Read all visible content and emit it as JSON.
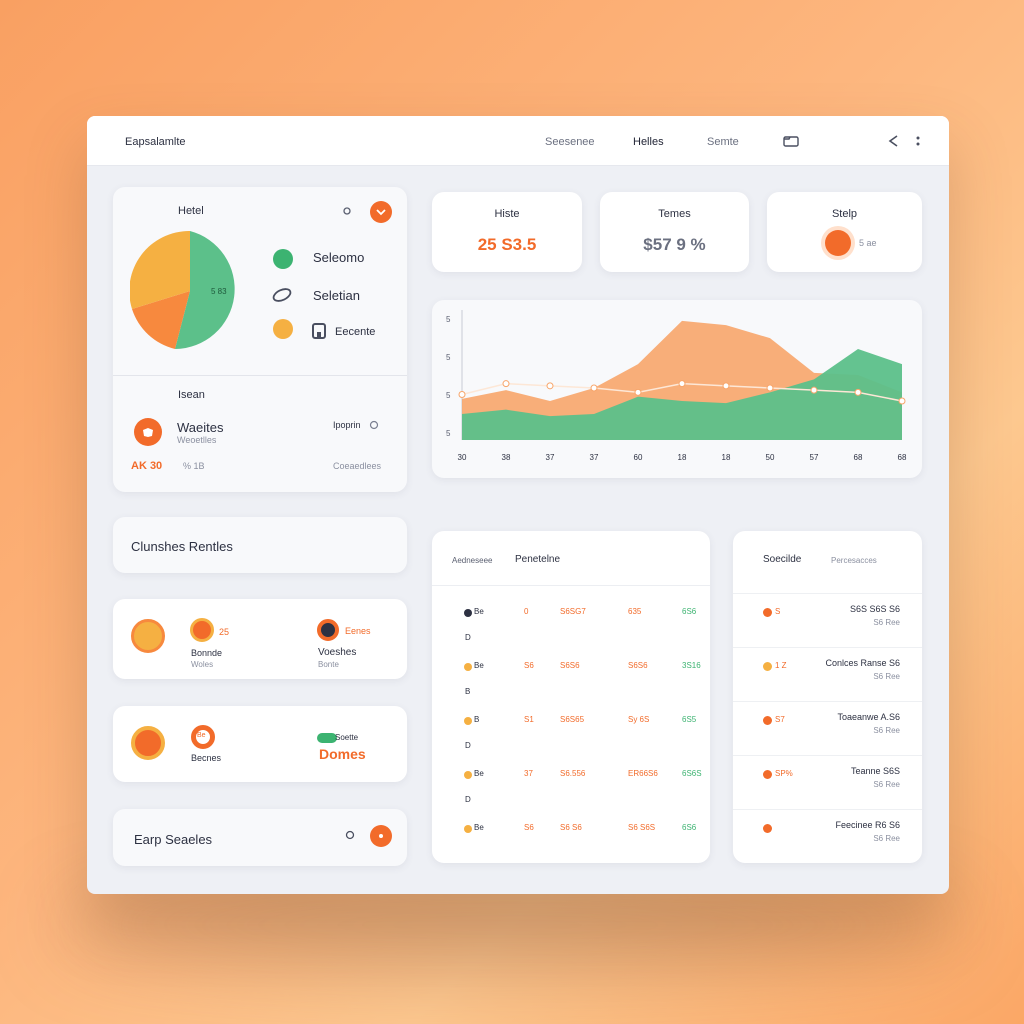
{
  "app": {
    "title": "Eapsalamlte"
  },
  "nav": {
    "items": [
      "Seesenee",
      "Helles",
      "Semte"
    ]
  },
  "summary_panel": {
    "title": "Hetel",
    "legend": [
      {
        "label": "Seleomo",
        "icon": "circle-dot-icon"
      },
      {
        "label": "Seletian",
        "icon": "link-icon"
      },
      {
        "label": "Eecente",
        "icon": "device-icon"
      }
    ],
    "pie_label": "5 83",
    "section2_title": "Isean",
    "item_title": "Waeites",
    "item_sub": "Weoetlles",
    "item_right": "Ipoprin",
    "stat_left": "AK 30",
    "stat_mid": "% 1B",
    "stat_right": "Coeaedlees"
  },
  "stats": [
    {
      "title": "Histe",
      "value": "25 S3.5"
    },
    {
      "title": "Temes",
      "value": "$57 9 %"
    },
    {
      "title": "Stelp",
      "value": "5 ae"
    }
  ],
  "chart_data": {
    "type": "area",
    "x": [
      "30",
      "38",
      "37",
      "37",
      "60",
      "18",
      "18",
      "50",
      "57",
      "68",
      "68"
    ],
    "series": [
      {
        "values": [
          19,
          23,
          18,
          24,
          35,
          55,
          53,
          47,
          31,
          30,
          22
        ]
      },
      {
        "values": [
          12,
          14,
          11,
          12,
          20,
          18,
          17,
          22,
          28,
          42,
          35
        ]
      }
    ],
    "markers": [
      6,
      11,
      10,
      9,
      7,
      11,
      10,
      9,
      8,
      7,
      3
    ],
    "ylabels": [
      "5",
      "5",
      "5",
      "5"
    ]
  },
  "clients_panel": {
    "title": "Clunshes Rentles"
  },
  "mini1": {
    "left_title": "Bonnde",
    "left_sub": "Woles",
    "left_badge": "25",
    "right_title": "Voeshes",
    "right_sub": "Bonte",
    "right_badge": "Eenes"
  },
  "mini2": {
    "left_badge": "Be",
    "left_title": "Becnes",
    "right_pill": "Soette",
    "right_value": "Domes"
  },
  "bottom_panel": {
    "title": "Earp Seaeles"
  },
  "table": {
    "headers": [
      "Aedneseee",
      "Penetelne"
    ],
    "rows": [
      {
        "c1": "Be",
        "c2": "0",
        "c3": "S6SG7",
        "c4": "635",
        "c5": "6S6",
        "sub": "D"
      },
      {
        "c1": "Be",
        "c2": "S6",
        "c3": "S6S6",
        "c4": "S6S6",
        "c5": "3S16",
        "sub": "B"
      },
      {
        "c1": "B",
        "c2": "S1",
        "c3": "S6S65",
        "c4": "Sy 6S",
        "c5": "6S5",
        "sub": "D"
      },
      {
        "c1": "Be",
        "c2": "37",
        "c3": "S6.556",
        "c4": "ER66S6",
        "c5": "6S6S",
        "sub": "D"
      },
      {
        "c1": "Be",
        "c2": "S6",
        "c3": "S6 S6",
        "c4": "S6 S6S",
        "c5": "6S6",
        "sub": ""
      }
    ]
  },
  "right_list": {
    "headers": [
      "Soecilde",
      "Percesacces"
    ],
    "rows": [
      {
        "tag": "S",
        "title": "S6S S6S S6",
        "sub": "S6 Ree"
      },
      {
        "tag": "1 Z",
        "title": "Conlces Ranse S6",
        "sub": "S6 Ree"
      },
      {
        "tag": "S7",
        "title": "Toaeanwe A.S6",
        "sub": "S6 Ree"
      },
      {
        "tag": "SP%",
        "title": "Teanne S6S",
        "sub": "S6 Ree"
      },
      {
        "tag": "",
        "title": "Feecinee R6 S6",
        "sub": "S6 Ree"
      }
    ]
  },
  "colors": {
    "orange": "#f26b2a",
    "light_orange": "#f7a968",
    "green": "#5cc08a",
    "gold": "#f5b042"
  }
}
